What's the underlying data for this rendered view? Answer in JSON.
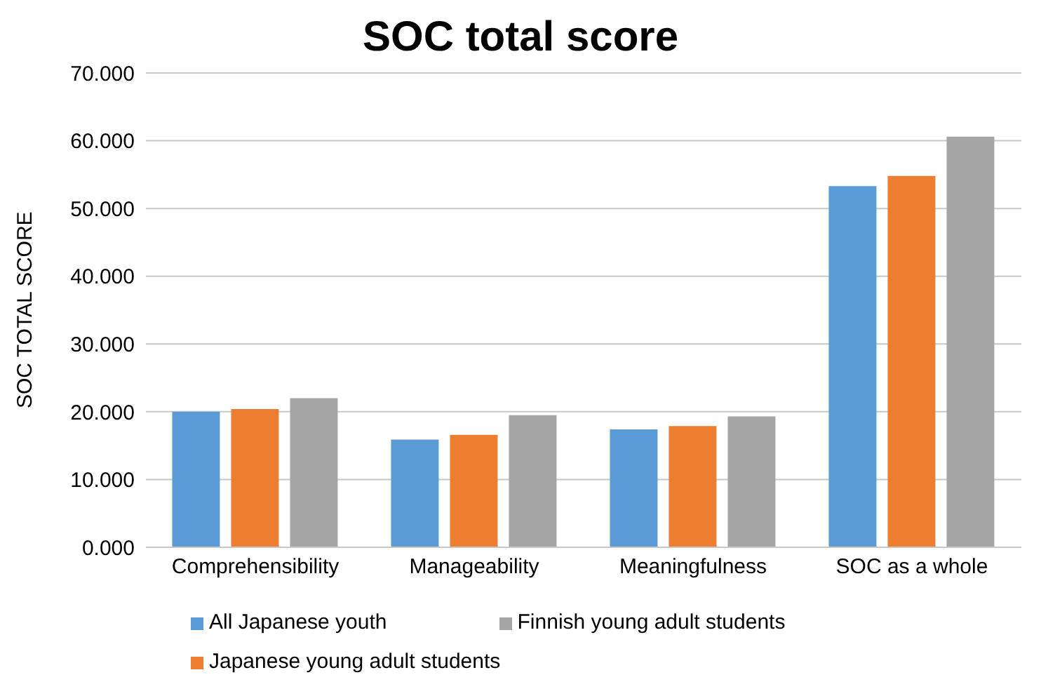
{
  "chart_data": {
    "type": "bar",
    "title": "SOC total score",
    "ylabel": "SOC TOTAL SCORE",
    "categories": [
      "Comprehensibility",
      "Manageability",
      "Meaningfulness",
      "SOC as a whole"
    ],
    "series": [
      {
        "name": "All Japanese youth",
        "color": "#5b9bd5",
        "values": [
          20.0,
          15.9,
          17.4,
          53.3
        ]
      },
      {
        "name": "Japanese young adult students",
        "color": "#ed7d31",
        "values": [
          20.4,
          16.6,
          17.9,
          54.8
        ]
      },
      {
        "name": "Finnish young adult students",
        "color": "#a5a5a5",
        "values": [
          22.0,
          19.5,
          19.3,
          60.6
        ]
      }
    ],
    "ylim": [
      0,
      70
    ],
    "yticks": [
      {
        "value": 0,
        "label": "0.000"
      },
      {
        "value": 10,
        "label": "10.000"
      },
      {
        "value": 20,
        "label": "20.000"
      },
      {
        "value": 30,
        "label": "30.000"
      },
      {
        "value": 40,
        "label": "40.000"
      },
      {
        "value": 50,
        "label": "50.000"
      },
      {
        "value": 60,
        "label": "60.000"
      },
      {
        "value": 70,
        "label": "70.000"
      }
    ],
    "grid": "y",
    "legend": "bottom"
  }
}
